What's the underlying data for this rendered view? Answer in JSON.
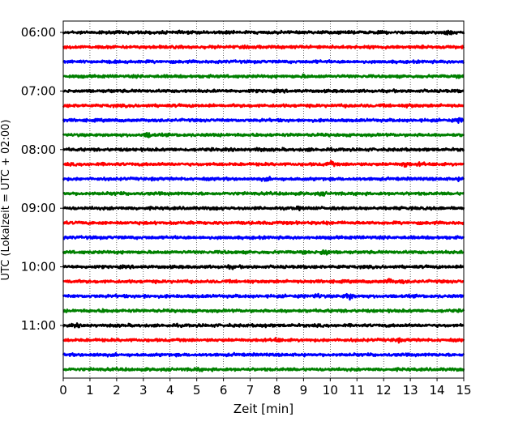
{
  "chart_data": {
    "type": "line",
    "title": "",
    "xlabel": "Zeit  [min]",
    "ylabel": "UTC (Lokalzeit = UTC + 02:00)",
    "xlim": [
      0,
      15
    ],
    "x_ticks": [
      "0",
      "1",
      "2",
      "3",
      "4",
      "5",
      "6",
      "7",
      "8",
      "9",
      "10",
      "11",
      "12",
      "13",
      "14",
      "15"
    ],
    "y_ticks": [
      "06:00",
      "07:00",
      "08:00",
      "09:00",
      "10:00",
      "11:00"
    ],
    "grid": "vertical dotted at each minute",
    "trace_interval_min": 15,
    "trace_colors": [
      "#000000",
      "#ff0000",
      "#0000ff",
      "#008000"
    ],
    "traces": [
      {
        "start": "06:00",
        "color": "#000000",
        "events": [
          [
            14.5,
            2.2
          ],
          [
            6.1,
            1.4
          ]
        ]
      },
      {
        "start": "06:15",
        "color": "#ff0000",
        "events": [
          [
            12.2,
            1.3
          ]
        ]
      },
      {
        "start": "06:30",
        "color": "#0000ff",
        "events": [
          [
            9.5,
            1.2
          ]
        ]
      },
      {
        "start": "06:45",
        "color": "#008000",
        "events": [
          [
            9.0,
            1.4
          ]
        ]
      },
      {
        "start": "07:00",
        "color": "#000000",
        "events": [
          [
            1.8,
            1.3
          ],
          [
            7.0,
            1.2
          ]
        ]
      },
      {
        "start": "07:15",
        "color": "#ff0000",
        "events": [
          [
            13.0,
            1.6
          ],
          [
            10.8,
            1.2
          ]
        ]
      },
      {
        "start": "07:30",
        "color": "#0000ff",
        "events": [
          [
            14.9,
            2.2
          ]
        ]
      },
      {
        "start": "07:45",
        "color": "#008000",
        "events": [
          [
            3.2,
            2.4
          ],
          [
            7.2,
            1.3
          ]
        ]
      },
      {
        "start": "08:00",
        "color": "#000000",
        "events": [
          [
            7.3,
            1.8
          ],
          [
            9.2,
            1.3
          ]
        ]
      },
      {
        "start": "08:15",
        "color": "#ff0000",
        "events": [
          [
            10.0,
            2.4
          ],
          [
            12.8,
            2.5
          ],
          [
            13.4,
            1.6
          ]
        ]
      },
      {
        "start": "08:30",
        "color": "#0000ff",
        "events": [
          [
            7.6,
            1.6
          ],
          [
            14.9,
            1.6
          ]
        ]
      },
      {
        "start": "08:45",
        "color": "#008000",
        "events": [
          [
            9.7,
            1.6
          ],
          [
            2.0,
            1.3
          ]
        ]
      },
      {
        "start": "09:00",
        "color": "#000000",
        "events": [
          [
            5.8,
            1.4
          ],
          [
            8.8,
            1.3
          ],
          [
            12.7,
            1.2
          ]
        ]
      },
      {
        "start": "09:15",
        "color": "#ff0000",
        "events": [
          [
            9.8,
            1.5
          ]
        ]
      },
      {
        "start": "09:30",
        "color": "#0000ff",
        "events": [
          [
            11.5,
            1.3
          ]
        ]
      },
      {
        "start": "09:45",
        "color": "#008000",
        "events": [
          [
            9.8,
            3.0
          ],
          [
            6.0,
            1.3
          ]
        ]
      },
      {
        "start": "10:00",
        "color": "#000000",
        "events": [
          [
            6.3,
            1.6
          ],
          [
            10.3,
            1.4
          ]
        ]
      },
      {
        "start": "10:15",
        "color": "#ff0000",
        "events": [
          [
            12.2,
            2.2
          ],
          [
            12.7,
            1.6
          ],
          [
            0.3,
            1.4
          ]
        ]
      },
      {
        "start": "10:30",
        "color": "#0000ff",
        "events": [
          [
            10.7,
            3.2
          ],
          [
            9.5,
            2.2
          ],
          [
            3.0,
            1.4
          ]
        ]
      },
      {
        "start": "10:45",
        "color": "#008000",
        "events": [
          [
            1.5,
            1.6
          ],
          [
            8.4,
            1.4
          ]
        ]
      },
      {
        "start": "11:00",
        "color": "#000000",
        "events": [
          [
            7.5,
            1.5
          ],
          [
            0.5,
            1.4
          ]
        ]
      },
      {
        "start": "11:15",
        "color": "#ff0000",
        "events": [
          [
            8.0,
            1.8
          ],
          [
            12.5,
            1.7
          ]
        ]
      },
      {
        "start": "11:30",
        "color": "#0000ff",
        "events": [
          [
            1.2,
            1.6
          ],
          [
            6.5,
            1.2
          ]
        ]
      },
      {
        "start": "11:45",
        "color": "#008000",
        "events": [
          [
            5.0,
            1.6
          ]
        ]
      }
    ]
  }
}
